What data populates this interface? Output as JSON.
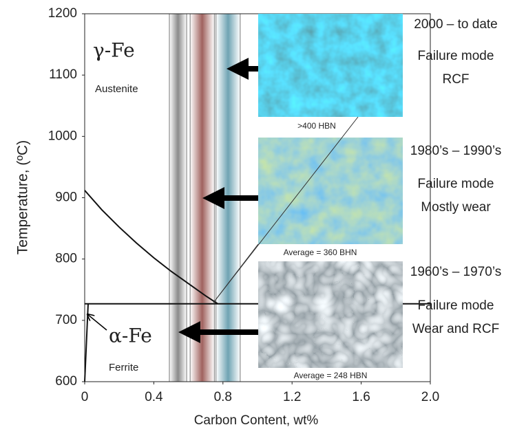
{
  "chart_data": {
    "type": "line",
    "x_label": "Carbon Content, wt%",
    "y_label": "Temperature, (ºC)",
    "xlim": [
      0,
      2
    ],
    "ylim": [
      600,
      1200
    ],
    "xticks": [
      0,
      0.4,
      0.8,
      1.2,
      1.6,
      {
        "value": 2,
        "label": "2.0"
      }
    ],
    "yticks": [
      600,
      700,
      800,
      900,
      1000,
      1100,
      1200
    ],
    "lines": [
      {
        "color": "#111111",
        "x": [
          0,
          0.1,
          0.2,
          0.3,
          0.4,
          0.5,
          0.6,
          0.7,
          0.77
        ],
        "y": [
          912,
          880,
          852,
          826,
          802,
          780,
          760,
          740,
          727
        ]
      },
      {
        "color": "#111111",
        "x": [
          0,
          2
        ],
        "y": [
          727,
          727
        ]
      },
      {
        "color": "#111111",
        "x": [
          0,
          0.02
        ],
        "y": [
          600,
          727
        ]
      }
    ],
    "bands": [
      {
        "x": [
          0.49,
          0.59
        ],
        "color": "#8a8a8a"
      },
      {
        "x": [
          0.61,
          0.75
        ],
        "color": "#a0625e"
      },
      {
        "x": [
          0.76,
          0.9
        ],
        "color": "#6fa3b3"
      }
    ],
    "phase_labels": [
      {
        "symbol": "γ-Fe",
        "name": "Austenite"
      },
      {
        "symbol": "α-Fe",
        "name": "Ferrite"
      }
    ],
    "panels": [
      {
        "caption": ">400 HBN",
        "era": "2000 – to date",
        "mode": [
          "Failure mode",
          "RCF"
        ]
      },
      {
        "caption": "Average = 360 BHN",
        "era": "1980’s – 1990’s",
        "mode": [
          "Failure mode",
          "Mostly wear"
        ]
      },
      {
        "caption": "Average = 248 HBN",
        "era": "1960’s – 1970’s",
        "mode": [
          "Failure mode",
          "Wear and RCF"
        ]
      }
    ]
  }
}
